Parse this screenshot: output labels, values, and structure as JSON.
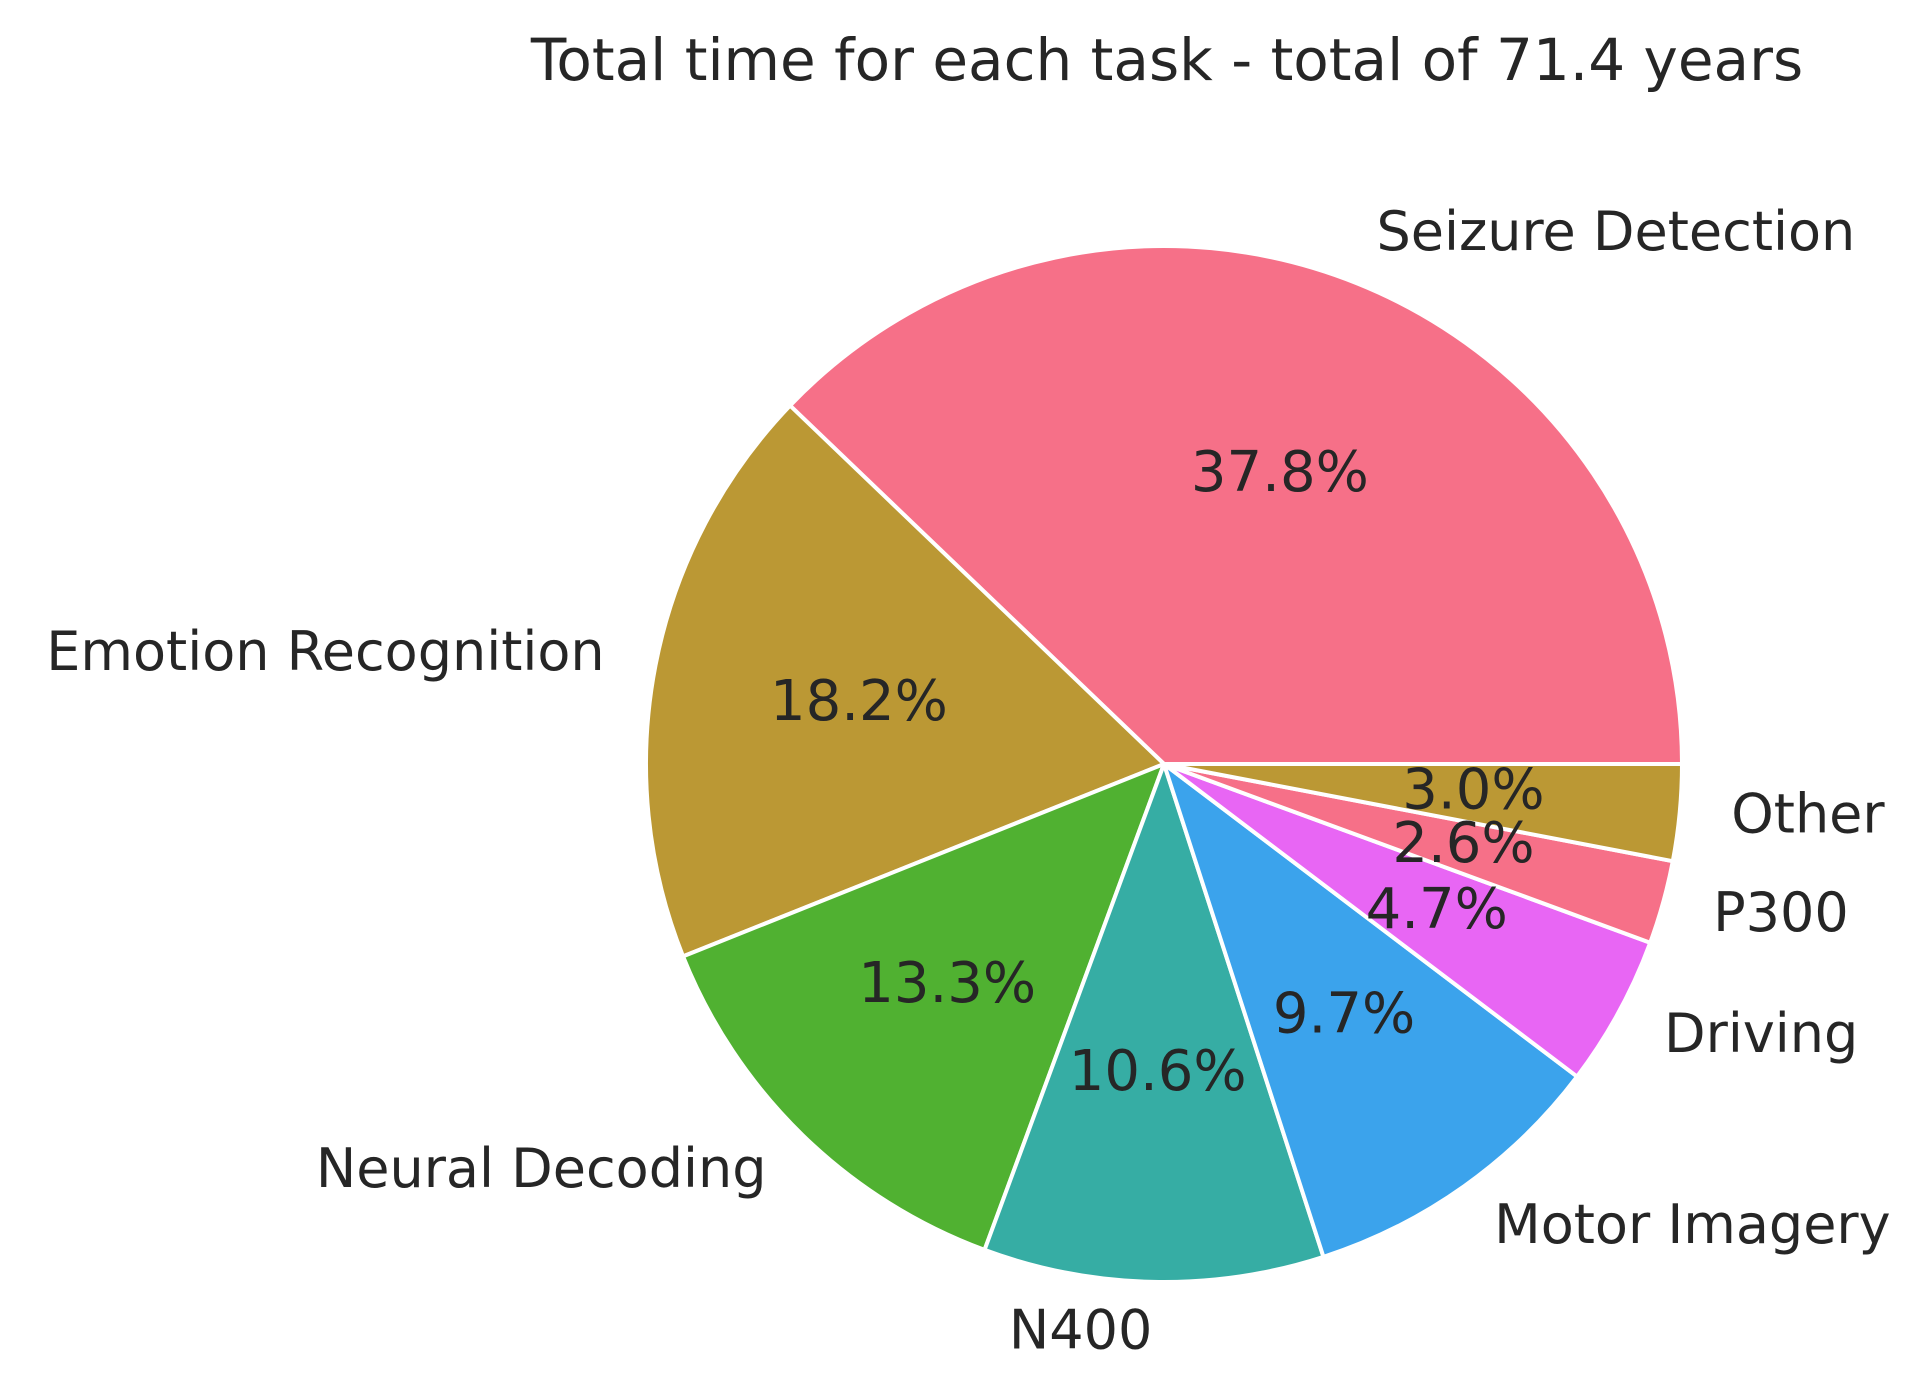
{
  "chart_data": {
    "type": "pie",
    "title": "Total time for each task - total of 71.4 years",
    "categories": [
      "Seizure Detection",
      "Emotion Recognition",
      "Neural Decoding",
      "N400",
      "Motor Imagery",
      "Driving",
      "P300",
      "Other"
    ],
    "values": [
      37.8,
      18.2,
      13.3,
      10.6,
      9.7,
      4.7,
      2.6,
      3.0
    ],
    "value_labels": [
      "37.8%",
      "18.2%",
      "13.3%",
      "10.6%",
      "9.7%",
      "4.7%",
      "2.6%",
      "3.0%"
    ],
    "colors": [
      "#f67088",
      "#bb9834",
      "#50b131",
      "#36ada4",
      "#3ba3ec",
      "#e866f4",
      "#f67088",
      "#bb9834"
    ]
  }
}
